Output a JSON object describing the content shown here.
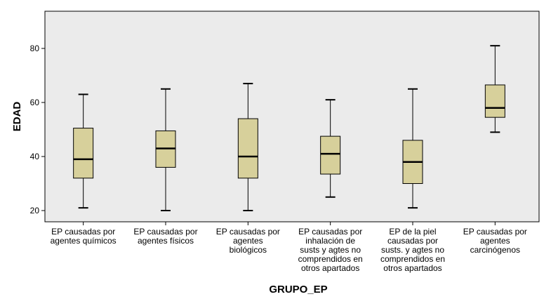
{
  "chart_data": {
    "type": "boxplot",
    "xlabel": "GRUPO_EP",
    "ylabel": "EDAD",
    "ylim": [
      15,
      95
    ],
    "yticks": [
      20,
      40,
      60,
      80
    ],
    "grid": false,
    "colors": {
      "box_fill": "#d7d09b",
      "plot_bg": "#ebebeb",
      "line": "#000000"
    },
    "categories": [
      [
        "EP causadas por",
        "agentes químicos"
      ],
      [
        "EP causadas por",
        "agentes físicos"
      ],
      [
        "EP causadas por",
        "agentes",
        "biológicos"
      ],
      [
        "EP causadas por",
        "inhalación de",
        "susts y agtes no",
        "comprendidos en",
        "otros apartados"
      ],
      [
        "EP de la piel",
        "causadas por",
        "susts. y agtes no",
        "comprendidos en",
        "otros apartados"
      ],
      [
        "EP causadas por",
        "agentes",
        "carcinógenos"
      ]
    ],
    "boxes": [
      {
        "min": 21,
        "q1": 32,
        "median": 39,
        "q3": 50.5,
        "max": 63
      },
      {
        "min": 20,
        "q1": 36,
        "median": 43,
        "q3": 49.5,
        "max": 65
      },
      {
        "min": 20,
        "q1": 32,
        "median": 40,
        "q3": 54,
        "max": 67
      },
      {
        "min": 25,
        "q1": 33.5,
        "median": 41,
        "q3": 47.5,
        "max": 61
      },
      {
        "min": 21,
        "q1": 30,
        "median": 38,
        "q3": 46,
        "max": 65
      },
      {
        "min": 49,
        "q1": 54.5,
        "median": 58,
        "q3": 66.5,
        "max": 81
      }
    ]
  }
}
